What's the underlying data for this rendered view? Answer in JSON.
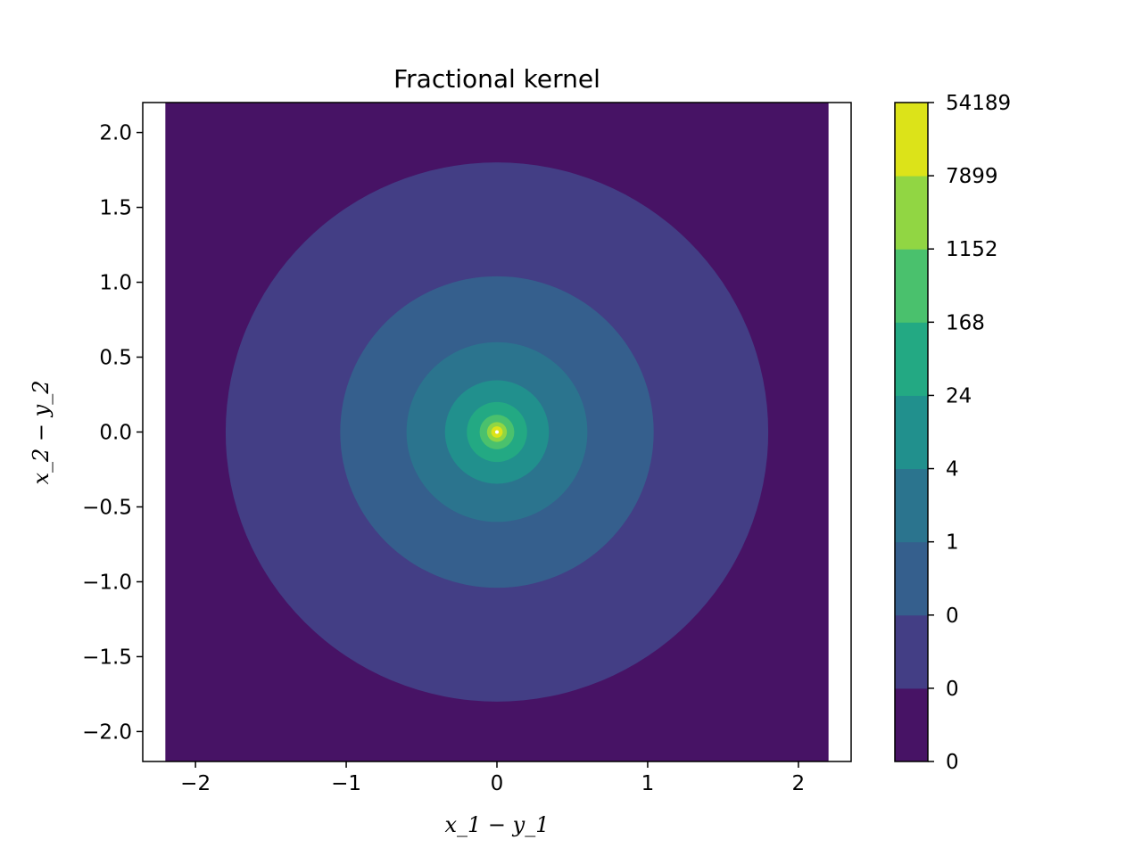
{
  "chart_data": {
    "type": "contour",
    "title": "Fractional kernel",
    "xlabel": "x_1 − y_1",
    "ylabel": "x_2 − y_2",
    "xlim": [
      -2.35,
      2.35
    ],
    "ylim": [
      -2.2,
      2.2
    ],
    "data_x_range": [
      -2.2,
      2.2
    ],
    "data_y_range": [
      -2.2,
      2.2
    ],
    "x_ticks": [
      {
        "value": -2,
        "label": "−2"
      },
      {
        "value": -1,
        "label": "−1"
      },
      {
        "value": 0,
        "label": "0"
      },
      {
        "value": 1,
        "label": "1"
      },
      {
        "value": 2,
        "label": "2"
      }
    ],
    "y_ticks": [
      {
        "value": -2.0,
        "label": "−2.0"
      },
      {
        "value": -1.5,
        "label": "−1.5"
      },
      {
        "value": -1.0,
        "label": "−1.0"
      },
      {
        "value": -0.5,
        "label": "−0.5"
      },
      {
        "value": 0.0,
        "label": "0.0"
      },
      {
        "value": 0.5,
        "label": "0.5"
      },
      {
        "value": 1.0,
        "label": "1.0"
      },
      {
        "value": 1.5,
        "label": "1.5"
      },
      {
        "value": 2.0,
        "label": "2.0"
      }
    ],
    "contour_radii": [
      1.8,
      1.04,
      0.6,
      0.345,
      0.2,
      0.115,
      0.066,
      0.038,
      0.02
    ],
    "colorbar": {
      "tick_labels": [
        "0",
        "0",
        "0",
        "1",
        "4",
        "24",
        "168",
        "1152",
        "7899",
        "54189"
      ],
      "level_colors": [
        "#471365",
        "#433e85",
        "#355f8d",
        "#2b748e",
        "#21908d",
        "#23a983",
        "#4ac16d",
        "#91d643",
        "#dce319"
      ]
    }
  }
}
